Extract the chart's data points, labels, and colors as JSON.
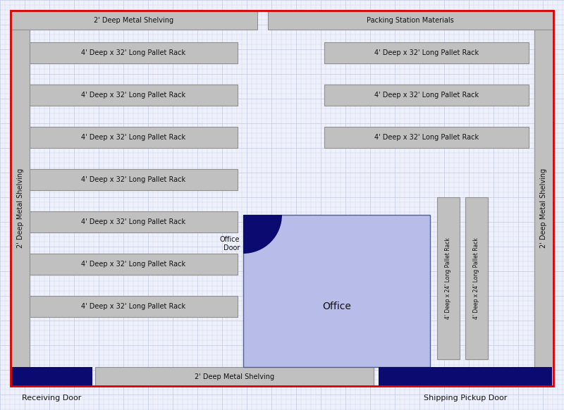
{
  "fig_width": 8.0,
  "fig_height": 5.82,
  "bg_grid_color": "#c8d0e8",
  "bg_fill": "#eef0fb",
  "outer_border_color": "#dd0000",
  "outer_border_lw": 2.0,
  "wall_left_label": "2' Deep Metal Shelving",
  "wall_right_label": "2' Deep Metal Shelving",
  "top_shelf_label": "2' Deep Metal Shelving",
  "top_packing_label": "Packing Station Materials",
  "bottom_shelf_label": "2' Deep Metal Shelving",
  "receiving_door_label": "Receiving Door",
  "shipping_door_label": "Shipping Pickup Door",
  "office_label": "Office",
  "office_door_label": "Office\nDoor",
  "rack_label_long": "4' Deep x 32' Long Pallet Rack",
  "rack_label_short": "4' Deep x 24' Long Pallet Rack",
  "rack_fill": "#c0c0c0",
  "rack_edge": "#909090",
  "rack_fill2": "#d0d0d0",
  "office_fill": "#b8bce8",
  "office_edge": "#5060a0",
  "door_fill": "#0a0a70",
  "shelving_fill": "#c0c0c0",
  "shelving_edge": "#909090",
  "text_color": "#111111"
}
